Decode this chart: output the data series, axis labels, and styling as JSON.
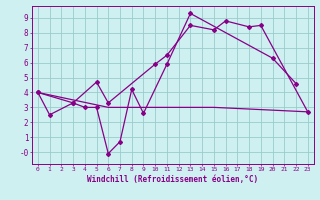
{
  "xlabel": "Windchill (Refroidissement éolien,°C)",
  "bg_color": "#cff0f0",
  "grid_color": "#99cccc",
  "line_color": "#880088",
  "xlim": [
    -0.5,
    23.5
  ],
  "ylim": [
    -0.8,
    9.8
  ],
  "xticks": [
    0,
    1,
    2,
    3,
    4,
    5,
    6,
    7,
    8,
    9,
    10,
    11,
    12,
    13,
    14,
    15,
    16,
    17,
    18,
    19,
    20,
    21,
    22,
    23
  ],
  "yticks": [
    0,
    1,
    2,
    3,
    4,
    5,
    6,
    7,
    8,
    9
  ],
  "ytick_labels": [
    "-0",
    "1",
    "2",
    "3",
    "4",
    "5",
    "6",
    "7",
    "8",
    "9"
  ],
  "line1_x": [
    0,
    1,
    3,
    4,
    5,
    6,
    7,
    8,
    9,
    11,
    13,
    20,
    22
  ],
  "line1_y": [
    4.0,
    2.5,
    3.3,
    3.0,
    3.0,
    -0.1,
    0.7,
    4.2,
    2.6,
    5.9,
    9.3,
    6.3,
    4.6
  ],
  "line2_x": [
    0,
    3,
    5,
    6,
    10,
    11,
    13,
    15,
    16,
    18,
    19,
    23
  ],
  "line2_y": [
    4.0,
    3.3,
    4.7,
    3.3,
    5.9,
    6.5,
    8.5,
    8.2,
    8.8,
    8.4,
    8.5,
    2.7
  ],
  "line3_x": [
    0,
    6,
    9,
    12,
    15,
    23
  ],
  "line3_y": [
    4.0,
    3.0,
    3.0,
    3.0,
    3.0,
    2.7
  ]
}
